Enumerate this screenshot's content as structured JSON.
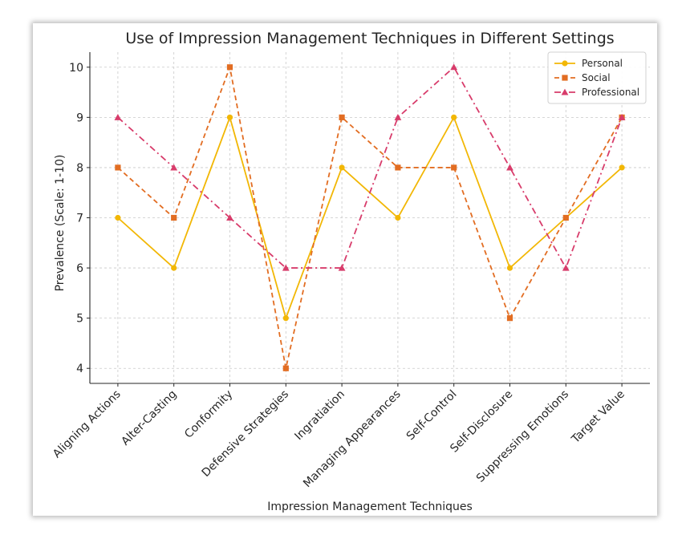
{
  "chart_data": {
    "type": "line",
    "title": "Use of Impression Management Techniques in Different Settings",
    "xlabel": "Impression Management Techniques",
    "ylabel": "Prevalence (Scale: 1-10)",
    "categories": [
      "Aligning Actions",
      "Alter-Casting",
      "Conformity",
      "Defensive Strategies",
      "Ingratiation",
      "Managing Appearances",
      "Self-Control",
      "Self-Disclosure",
      "Suppressing Emotions",
      "Target Value"
    ],
    "ylim": [
      3.7,
      10.3
    ],
    "yticks": [
      4,
      5,
      6,
      7,
      8,
      9,
      10
    ],
    "grid": true,
    "legend_position": "top-right",
    "series": [
      {
        "name": "Personal",
        "color": "#f2b705",
        "marker": "circle",
        "linestyle": "solid",
        "values": [
          7,
          6,
          9,
          5,
          8,
          7,
          9,
          6,
          7,
          8
        ]
      },
      {
        "name": "Social",
        "color": "#e26d22",
        "marker": "square",
        "linestyle": "dashed",
        "values": [
          8,
          7,
          10,
          4,
          9,
          8,
          8,
          5,
          7,
          9
        ]
      },
      {
        "name": "Professional",
        "color": "#d83c6b",
        "marker": "triangle",
        "linestyle": "dashdot",
        "values": [
          9,
          8,
          7,
          6,
          6,
          9,
          10,
          8,
          6,
          9
        ]
      }
    ]
  }
}
